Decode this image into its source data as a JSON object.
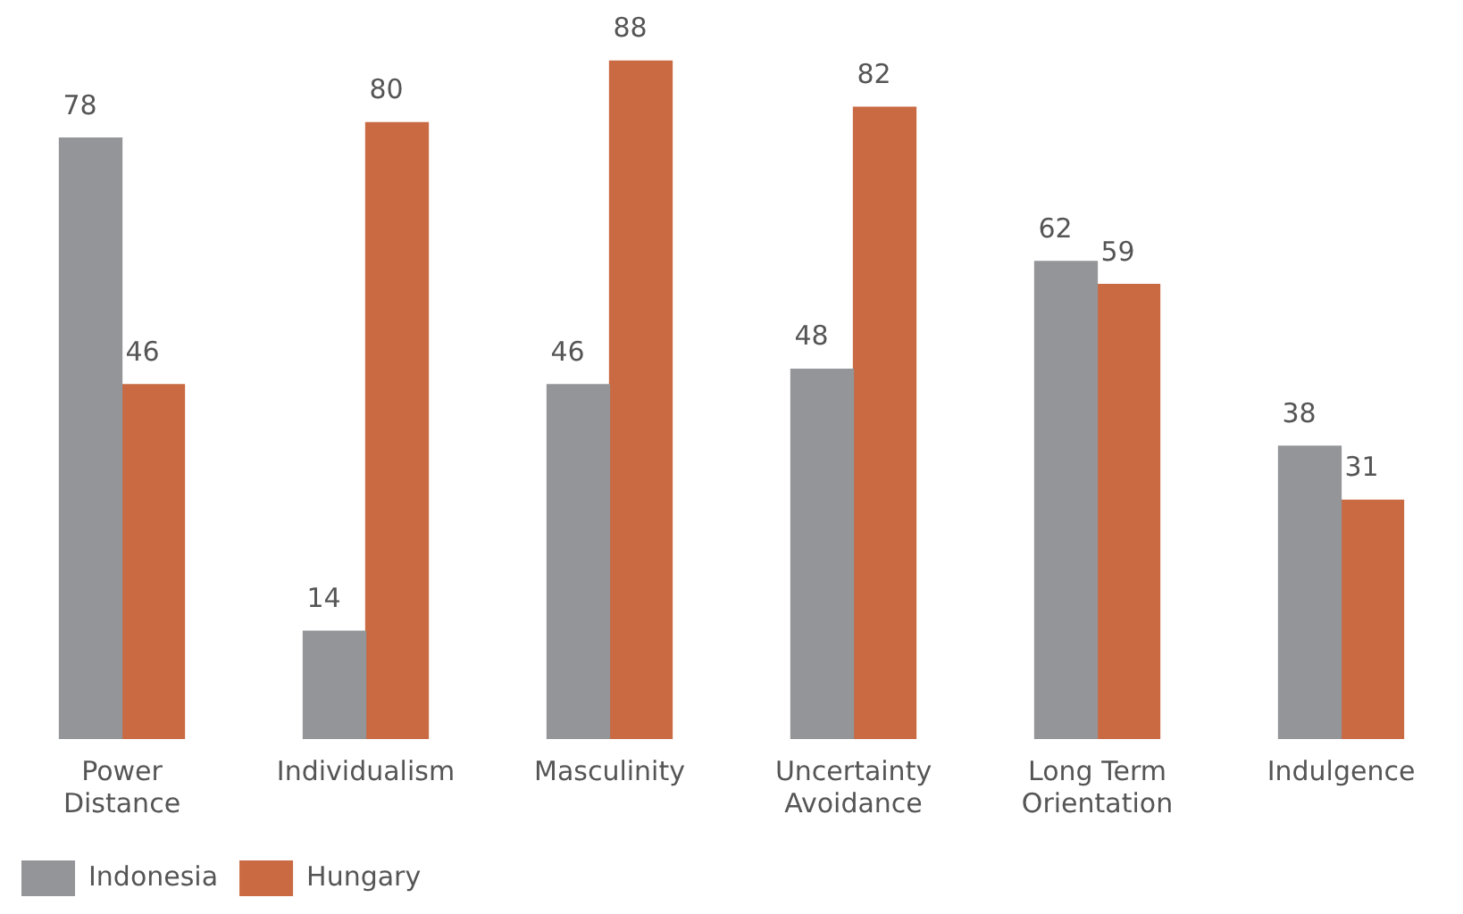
{
  "chart_data": {
    "type": "bar",
    "categories": [
      "Power Distance",
      "Individualism",
      "Masculinity",
      "Uncertainty Avoidance",
      "Long Term Orientation",
      "Indulgence"
    ],
    "series": [
      {
        "name": "Indonesia",
        "color": "#939598",
        "values": [
          78,
          14,
          46,
          48,
          62,
          38
        ]
      },
      {
        "name": "Hungary",
        "color": "#c96a43",
        "values": [
          46,
          80,
          88,
          82,
          59,
          31
        ]
      }
    ],
    "ylim": [
      0,
      95
    ],
    "tick_labels": "x",
    "grid": false,
    "legend": "bottom left",
    "data_labels": true
  }
}
